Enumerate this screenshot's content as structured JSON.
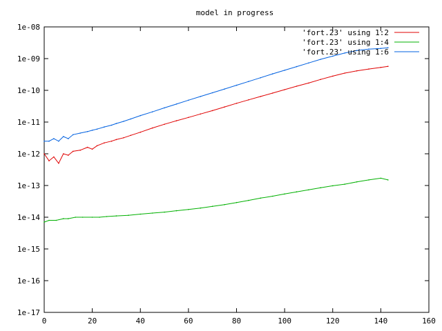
{
  "chart_data": {
    "type": "line",
    "title": "model in progress",
    "xlabel": "",
    "ylabel": "",
    "xlim": [
      0,
      160
    ],
    "ylim": [
      1e-17,
      1e-08
    ],
    "y_scale": "log",
    "grid": false,
    "legend_position": "top-right",
    "x_ticks": [
      0,
      20,
      40,
      60,
      80,
      100,
      120,
      140,
      160
    ],
    "x_tick_labels": [
      "0",
      "20",
      "40",
      "60",
      "80",
      "100",
      "120",
      "140",
      "160"
    ],
    "y_ticks": [
      1e-17,
      1e-16,
      1e-15,
      1e-14,
      1e-13,
      1e-12,
      1e-11,
      1e-10,
      1e-09,
      1e-08
    ],
    "y_tick_labels": [
      "1e-17",
      "1e-16",
      "1e-15",
      "1e-14",
      "1e-13",
      "1e-12",
      "1e-11",
      "1e-10",
      "1e-09",
      "1e-08"
    ],
    "series": [
      {
        "name": "'fort.23' using 1:2",
        "color": "#e00000",
        "x": [
          0,
          2,
          4,
          6,
          8,
          10,
          12,
          15,
          18,
          20,
          22,
          25,
          28,
          30,
          33,
          36,
          40,
          45,
          50,
          55,
          60,
          65,
          70,
          75,
          80,
          85,
          90,
          95,
          100,
          105,
          110,
          115,
          120,
          125,
          130,
          135,
          140,
          143
        ],
        "y": [
          1e-12,
          6e-13,
          8e-13,
          5e-13,
          1e-12,
          9e-13,
          1.2e-12,
          1.3e-12,
          1.6e-12,
          1.4e-12,
          1.8e-12,
          2.2e-12,
          2.5e-12,
          2.8e-12,
          3.2e-12,
          3.8e-12,
          4.8e-12,
          6.5e-12,
          8.5e-12,
          1.1e-11,
          1.4e-11,
          1.8e-11,
          2.3e-11,
          3e-11,
          3.9e-11,
          5e-11,
          6.4e-11,
          8.2e-11,
          1.05e-10,
          1.35e-10,
          1.7e-10,
          2.2e-10,
          2.8e-10,
          3.5e-10,
          4.1e-10,
          4.7e-10,
          5.3e-10,
          5.7e-10
        ]
      },
      {
        "name": "'fort.23' using 1:4",
        "color": "#00b000",
        "x": [
          0,
          2,
          5,
          8,
          10,
          13,
          16,
          20,
          23,
          26,
          30,
          35,
          40,
          45,
          50,
          55,
          60,
          65,
          70,
          75,
          80,
          85,
          90,
          95,
          100,
          105,
          110,
          115,
          120,
          125,
          130,
          135,
          140,
          143
        ],
        "y": [
          7e-15,
          8e-15,
          8e-15,
          9e-15,
          9e-15,
          1e-14,
          1e-14,
          1e-14,
          1e-14,
          1.05e-14,
          1.1e-14,
          1.15e-14,
          1.25e-14,
          1.35e-14,
          1.45e-14,
          1.6e-14,
          1.75e-14,
          1.95e-14,
          2.2e-14,
          2.5e-14,
          2.9e-14,
          3.4e-14,
          4e-14,
          4.6e-14,
          5.4e-14,
          6.3e-14,
          7.3e-14,
          8.5e-14,
          9.8e-14,
          1.1e-13,
          1.3e-13,
          1.5e-13,
          1.7e-13,
          1.5e-13
        ]
      },
      {
        "name": "'fort.23' using 1:6",
        "color": "#0060e0",
        "x": [
          0,
          2,
          4,
          6,
          8,
          10,
          12,
          15,
          18,
          20,
          22,
          25,
          28,
          30,
          33,
          36,
          40,
          45,
          50,
          55,
          60,
          65,
          70,
          75,
          80,
          85,
          90,
          95,
          100,
          105,
          110,
          115,
          120,
          125,
          130,
          135,
          140,
          143
        ],
        "y": [
          2.5e-12,
          2.5e-12,
          3e-12,
          2.5e-12,
          3.5e-12,
          3e-12,
          4e-12,
          4.5e-12,
          5e-12,
          5.5e-12,
          6e-12,
          7e-12,
          8e-12,
          9e-12,
          1.05e-11,
          1.25e-11,
          1.6e-11,
          2.1e-11,
          2.8e-11,
          3.7e-11,
          4.9e-11,
          6.4e-11,
          8.4e-11,
          1.1e-10,
          1.45e-10,
          1.9e-10,
          2.5e-10,
          3.3e-10,
          4.3e-10,
          5.6e-10,
          7.3e-10,
          9.5e-10,
          1.2e-09,
          1.5e-09,
          1.8e-09,
          2e-09,
          2.1e-09,
          2.2e-09
        ]
      }
    ]
  }
}
